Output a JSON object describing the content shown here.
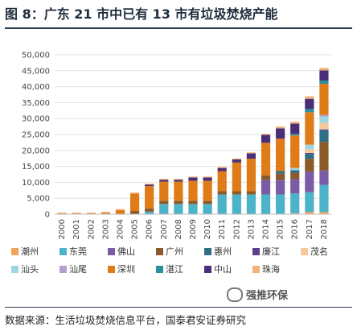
{
  "figure": {
    "title": "图 8：广东 21 市中已有 13 市有垃圾焚烧产能",
    "source": "数据来源：生活垃圾焚烧信息平台，国泰君安证券研究",
    "watermark": "强推环保"
  },
  "chart_data": {
    "type": "bar",
    "stacked": true,
    "title": "",
    "xlabel": "",
    "ylabel": "",
    "ylim": [
      0,
      50000
    ],
    "yticks": [
      "0",
      "5,000",
      "10,000",
      "15,000",
      "20,000",
      "25,000",
      "30,000",
      "35,000",
      "40,000",
      "45,000",
      "50,000"
    ],
    "ytick_values": [
      0,
      5000,
      10000,
      15000,
      20000,
      25000,
      30000,
      35000,
      40000,
      45000,
      50000
    ],
    "grid": true,
    "legend_position": "bottom",
    "categories": [
      "2000",
      "2001",
      "2002",
      "2003",
      "2004",
      "2005",
      "2006",
      "2007",
      "2008",
      "2009",
      "2010",
      "2011",
      "2012",
      "2013",
      "2014",
      "2015",
      "2016",
      "2017",
      "2018"
    ],
    "series": [
      {
        "name": "潮州",
        "color": "#f0a45b",
        "values": [
          0,
          0,
          0,
          0,
          0,
          0,
          0,
          0,
          0,
          0,
          0,
          0,
          0,
          0,
          0,
          0,
          300,
          700,
          700
        ]
      },
      {
        "name": "东莞",
        "color": "#4db3c9",
        "values": [
          0,
          0,
          0,
          0,
          0,
          0,
          800,
          3200,
          3200,
          3200,
          3200,
          6200,
          6200,
          6200,
          6200,
          6200,
          6200,
          6200,
          8500
        ]
      },
      {
        "name": "佛山",
        "color": "#7a5ba6",
        "values": [
          0,
          0,
          0,
          0,
          0,
          0,
          0,
          0,
          0,
          0,
          0,
          0,
          0,
          0,
          4500,
          4500,
          4500,
          6500,
          4500
        ]
      },
      {
        "name": "广州",
        "color": "#8b5a2b",
        "values": [
          0,
          0,
          0,
          0,
          0,
          1000,
          1000,
          1000,
          1000,
          1000,
          1000,
          1000,
          1000,
          1000,
          1500,
          2000,
          2000,
          4000,
          9000
        ]
      },
      {
        "name": "惠州",
        "color": "#2e6f86",
        "values": [
          0,
          0,
          0,
          0,
          0,
          0,
          0,
          0,
          0,
          0,
          0,
          0,
          0,
          0,
          0,
          800,
          800,
          1500,
          3600
        ]
      },
      {
        "name": "廉江",
        "color": "#5a3f8c",
        "values": [
          0,
          0,
          0,
          0,
          0,
          0,
          0,
          0,
          0,
          0,
          0,
          0,
          0,
          0,
          0,
          0,
          0,
          300,
          300
        ]
      },
      {
        "name": "茂名",
        "color": "#f6c89a",
        "values": [
          0,
          0,
          0,
          0,
          0,
          0,
          0,
          0,
          0,
          0,
          0,
          0,
          0,
          0,
          0,
          0,
          0,
          1200,
          2000
        ]
      },
      {
        "name": "汕头",
        "color": "#9fd4e3",
        "values": [
          0,
          0,
          0,
          0,
          0,
          0,
          0,
          0,
          0,
          0,
          0,
          0,
          0,
          0,
          0,
          0,
          700,
          1400,
          2000
        ]
      },
      {
        "name": "汕尾",
        "color": "#b59fd1",
        "values": [
          0,
          0,
          0,
          0,
          0,
          0,
          0,
          0,
          0,
          0,
          0,
          0,
          0,
          0,
          0,
          0,
          0,
          0,
          500
        ]
      },
      {
        "name": "深圳",
        "color": "#e07b1a",
        "values": [
          225,
          225,
          225,
          450,
          1300,
          5500,
          7000,
          6000,
          6000,
          6300,
          6300,
          6300,
          9000,
          10200,
          10200,
          10200,
          10200,
          10200,
          9800
        ]
      },
      {
        "name": "湛江",
        "color": "#2a8f9e",
        "values": [
          0,
          0,
          0,
          0,
          0,
          0,
          0,
          0,
          0,
          0,
          0,
          0,
          0,
          0,
          0,
          0,
          500,
          1000,
          1000
        ]
      },
      {
        "name": "中山",
        "color": "#4a2f78",
        "values": [
          0,
          0,
          0,
          0,
          0,
          0,
          500,
          600,
          600,
          1000,
          1000,
          1000,
          1000,
          1700,
          2500,
          3200,
          3200,
          3200,
          3200
        ]
      },
      {
        "name": "珠海",
        "color": "#f3b27a",
        "values": [
          300,
          300,
          300,
          300,
          300,
          300,
          300,
          300,
          300,
          300,
          300,
          300,
          300,
          300,
          300,
          600,
          600,
          800,
          800
        ]
      }
    ]
  }
}
